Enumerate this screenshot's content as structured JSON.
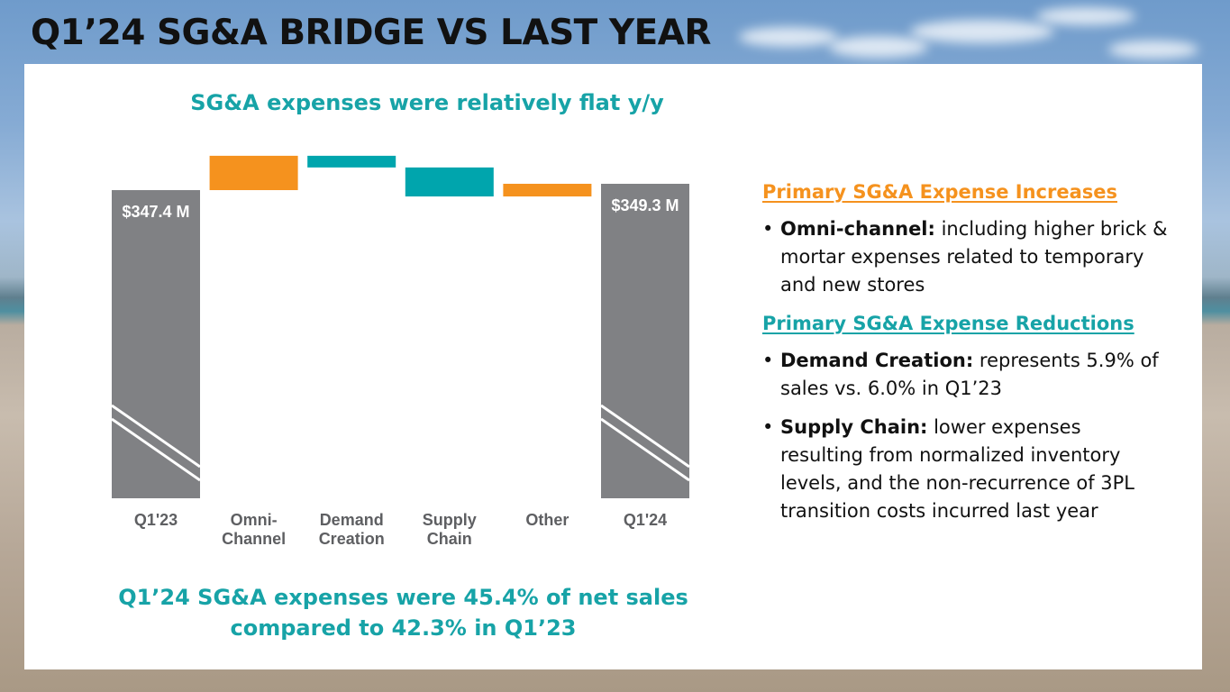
{
  "slide": {
    "title": "Q1’24 SG&A BRIDGE VS LAST YEAR",
    "chart_subtitle": "SG&A expenses were relatively flat y/y",
    "footer_line1": "Q1’24 SG&A expenses were 45.4% of net sales",
    "footer_line2": "compared to 42.3% in Q1’23"
  },
  "colors": {
    "increase": "#f5921e",
    "decrease": "#00a5ad",
    "total": "#808184",
    "accent_teal": "#17a3a7",
    "accent_orange": "#f5921e"
  },
  "commentary": {
    "increases_heading": "Primary SG&A Expense Increases",
    "increases": [
      {
        "bold": "Omni-channel:",
        "text": " including higher brick & mortar expenses related to temporary and new stores"
      }
    ],
    "reductions_heading": "Primary SG&A Expense Reductions",
    "reductions": [
      {
        "bold": "Demand Creation:",
        "text": "  represents 5.9% of sales vs. 6.0% in Q1’23"
      },
      {
        "bold": "Supply Chain:",
        "text": " lower expenses resulting from normalized inventory levels, and the non-recurrence of 3PL transition costs incurred last year"
      }
    ],
    "bullet": "•"
  },
  "chart_data": {
    "type": "bar",
    "subtype": "waterfall",
    "title": "SG&A expenses were relatively flat y/y",
    "units": "$M",
    "axis_broken": true,
    "categories": [
      "Q1'23",
      "Omni-\nChannel",
      "Demand\nCreation",
      "Supply\nChain",
      "Other",
      "Q1'24"
    ],
    "category_lines": [
      [
        "Q1'23"
      ],
      [
        "Omni-",
        "Channel"
      ],
      [
        "Demand",
        "Creation"
      ],
      [
        "Supply",
        "Chain"
      ],
      [
        "Other"
      ],
      [
        "Q1'24"
      ]
    ],
    "steps": [
      {
        "name": "Q1'23",
        "kind": "total",
        "value": 347.4,
        "label": "$347.4 M"
      },
      {
        "name": "Omni-Channel",
        "kind": "increase",
        "value": 10.3
      },
      {
        "name": "Demand Creation",
        "kind": "decrease",
        "value": -3.5
      },
      {
        "name": "Supply Chain",
        "kind": "decrease",
        "value": -8.7
      },
      {
        "name": "Other",
        "kind": "increase",
        "value": 3.8
      },
      {
        "name": "Q1'24",
        "kind": "total",
        "value": 349.3,
        "label": "$349.3 M"
      }
    ],
    "ylim_visible": [
      347.4,
      357.7
    ],
    "xlabel": "",
    "ylabel": "",
    "grid": false,
    "legend": "none"
  }
}
